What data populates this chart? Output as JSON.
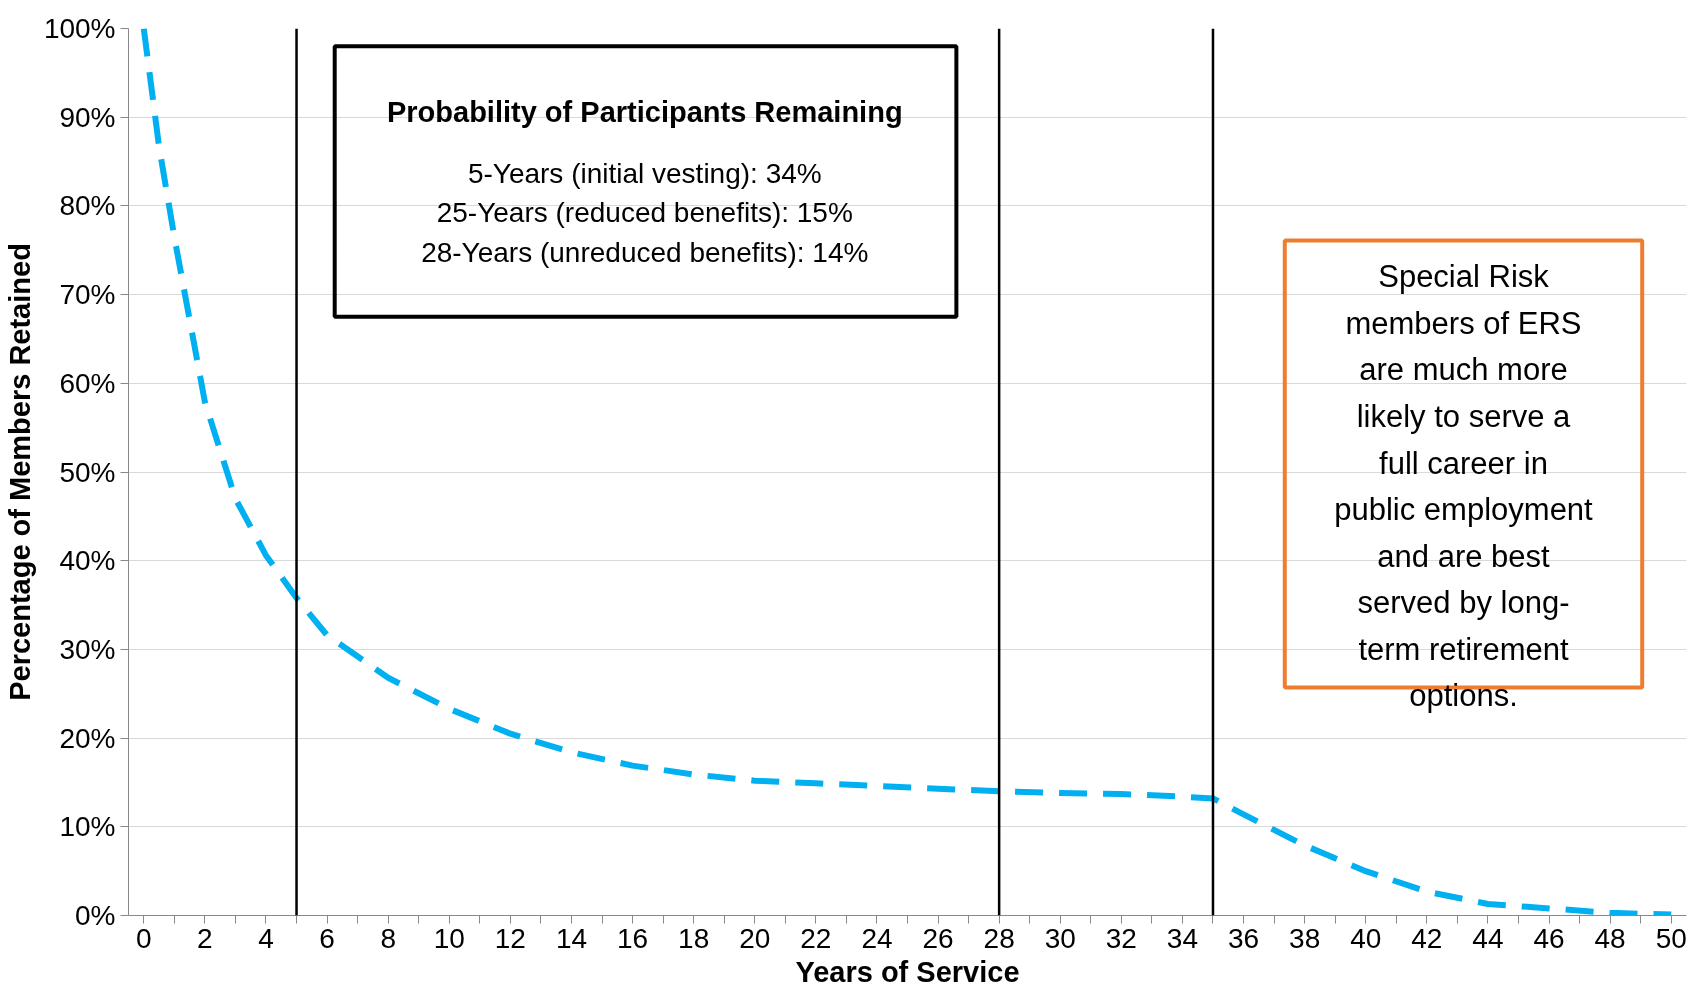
{
  "chart_data": {
    "type": "line",
    "xlabel": "Years of Service",
    "ylabel": "Percentage of Members Retained",
    "x": [
      0,
      0.5,
      1,
      2,
      3,
      4,
      5,
      6,
      8,
      10,
      12,
      14,
      16,
      18,
      20,
      22,
      24,
      26,
      28,
      30,
      32,
      34,
      35,
      36,
      38,
      40,
      42,
      44,
      46,
      48,
      50
    ],
    "series": [
      {
        "color": "#00b0f0",
        "values": [
          100,
          86.7,
          76.5,
          57.9,
          47,
          40.6,
          35.8,
          31.6,
          26.8,
          23.3,
          20.5,
          18.4,
          16.9,
          15.9,
          15.2,
          14.9,
          14.6,
          14.3,
          14.0,
          13.8,
          13.7,
          13.4,
          13.2,
          11.4,
          7.9,
          5.0,
          2.7,
          1.3,
          0.8,
          0.3,
          0.1
        ]
      }
    ],
    "line_style": "dashed",
    "marker": "none",
    "grid": "y",
    "xlim": [
      -0.5,
      50.5
    ],
    "ylim": [
      0,
      100
    ],
    "xticks": [
      0,
      {
        "value": 1,
        "label": null
      },
      2,
      {
        "value": 3,
        "label": null
      },
      4,
      {
        "value": 5,
        "label": null
      },
      6,
      {
        "value": 7,
        "label": null
      },
      8,
      {
        "value": 9,
        "label": null
      },
      10,
      {
        "value": 11,
        "label": null
      },
      12,
      {
        "value": 13,
        "label": null
      },
      14,
      {
        "value": 15,
        "label": null
      },
      16,
      {
        "value": 17,
        "label": null
      },
      18,
      {
        "value": 19,
        "label": null
      },
      20,
      {
        "value": 21,
        "label": null
      },
      22,
      {
        "value": 23,
        "label": null
      },
      24,
      {
        "value": 25,
        "label": null
      },
      26,
      {
        "value": 27,
        "label": null
      },
      28,
      {
        "value": 29,
        "label": null
      },
      30,
      {
        "value": 31,
        "label": null
      },
      32,
      {
        "value": 33,
        "label": null
      },
      34,
      {
        "value": 35,
        "label": null
      },
      36,
      {
        "value": 37,
        "label": null
      },
      38,
      {
        "value": 39,
        "label": null
      },
      40,
      {
        "value": 41,
        "label": null
      },
      42,
      {
        "value": 43,
        "label": null
      },
      44,
      {
        "value": 45,
        "label": null
      },
      46,
      {
        "value": 47,
        "label": null
      },
      48,
      {
        "value": 49,
        "label": null
      },
      50
    ],
    "yticks": [
      {
        "value": 0,
        "label": "0%"
      },
      {
        "value": 10,
        "label": "10%"
      },
      {
        "value": 20,
        "label": "20%"
      },
      {
        "value": 30,
        "label": "30%"
      },
      {
        "value": 40,
        "label": "40%"
      },
      {
        "value": 50,
        "label": "50%"
      },
      {
        "value": 60,
        "label": "60%"
      },
      {
        "value": 70,
        "label": "70%"
      },
      {
        "value": 80,
        "label": "80%"
      },
      {
        "value": 90,
        "label": "90%"
      },
      {
        "value": 100,
        "label": "100%"
      }
    ],
    "ref_lines": [
      {
        "axis": "x",
        "value": 5,
        "color": "#000000"
      },
      {
        "axis": "x",
        "value": 28,
        "color": "#000000"
      },
      {
        "axis": "x",
        "value": 35,
        "color": "#000000"
      }
    ],
    "annotations": [
      "Probability of Participants Remaining",
      "5-Years (initial vesting): 34%",
      "25-Years (reduced benefits): 15%",
      "28-Years (unreduced benefits): 14%",
      "Special Risk members of ERS are much more likely to serve a full career in public employment and are best served by long-term retirement options."
    ]
  }
}
